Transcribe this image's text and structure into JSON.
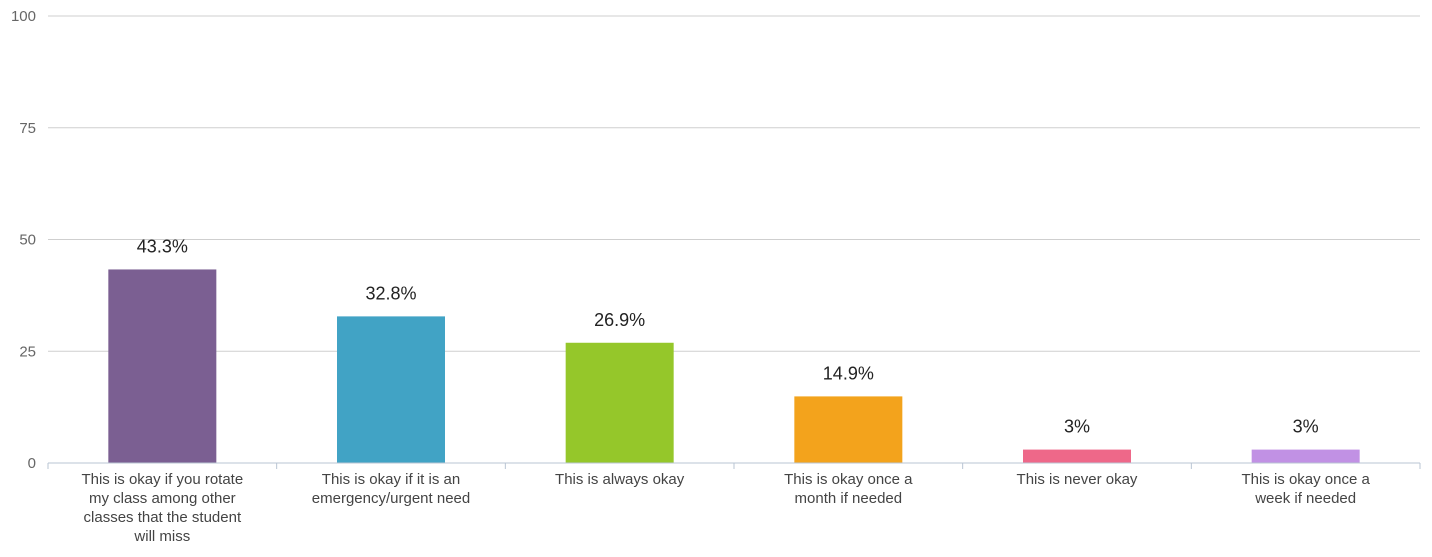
{
  "chart_data": {
    "type": "bar",
    "categories": [
      "This is okay if you rotate my class among other classes that the student will miss",
      "This is okay if it is an emergency/urgent need",
      "This is always okay",
      "This is okay once a month if needed",
      "This is never okay",
      "This is okay once a week if needed"
    ],
    "category_lines": [
      [
        "This is okay if you rotate",
        "my class among other",
        "classes that the student",
        "will miss"
      ],
      [
        "This is okay if it is an",
        "emergency/urgent need"
      ],
      [
        "This is always okay"
      ],
      [
        "This is okay once a",
        "month if needed"
      ],
      [
        "This is never okay"
      ],
      [
        "This is okay once a",
        "week if needed"
      ]
    ],
    "values": [
      43.3,
      32.8,
      26.9,
      14.9,
      3,
      3
    ],
    "data_labels": [
      "43.3%",
      "32.8%",
      "26.9%",
      "14.9%",
      "3%",
      "3%"
    ],
    "colors": [
      "#7b5f92",
      "#41a3c5",
      "#95c72a",
      "#f3a31c",
      "#ee6889",
      "#c191e4"
    ],
    "yticks": [
      0,
      25,
      50,
      75,
      100
    ],
    "ylim": [
      0,
      100
    ],
    "grid": true,
    "title": "",
    "xlabel": "",
    "ylabel": ""
  }
}
